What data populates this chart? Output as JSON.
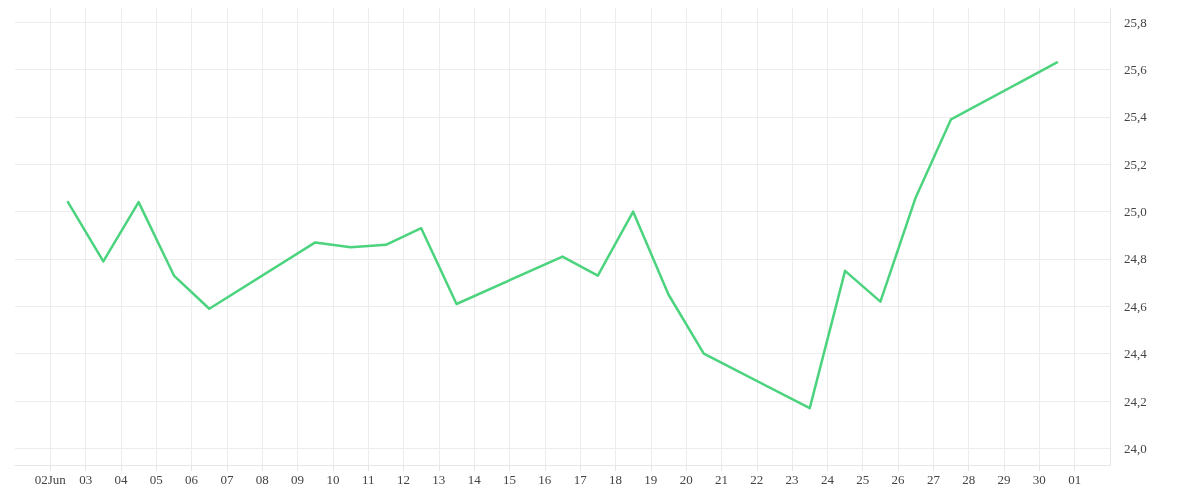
{
  "chart_data": {
    "type": "line",
    "x": [
      "--06-02T12:00",
      "--06-03T12:00",
      "--06-04T12:00",
      "--06-05T12:00",
      "--06-06T12:00",
      "--06-09T12:00",
      "--06-10T12:00",
      "--06-11T12:00",
      "--06-12T12:00",
      "--06-13T12:00",
      "--06-16T12:00",
      "--06-17T12:00",
      "--06-18T12:00",
      "--06-19T12:00",
      "--06-20T12:00",
      "--06-23T12:00",
      "--06-24T12:00",
      "--06-25T12:00",
      "--06-26T12:00",
      "--06-27T12:00",
      "--06-30T12:00"
    ],
    "series": [
      {
        "color": "#4cd37e",
        "values": [
          25.04,
          24.79,
          25.04,
          24.73,
          24.59,
          24.87,
          24.85,
          24.86,
          24.93,
          24.61,
          24.81,
          24.73,
          25.0,
          24.65,
          24.4,
          24.17,
          24.75,
          24.62,
          25.06,
          25.39,
          25.63
        ]
      }
    ],
    "xlim": [
      "--06-01",
      "--07-02"
    ],
    "xticks": [
      {
        "value": "--06-02",
        "label": "02Jun"
      },
      {
        "value": "--06-03",
        "label": "03"
      },
      {
        "value": "--06-04",
        "label": "04"
      },
      {
        "value": "--06-05",
        "label": "05"
      },
      {
        "value": "--06-06",
        "label": "06"
      },
      {
        "value": "--06-07",
        "label": "07"
      },
      {
        "value": "--06-08",
        "label": "08"
      },
      {
        "value": "--06-09",
        "label": "09"
      },
      {
        "value": "--06-10",
        "label": "10"
      },
      {
        "value": "--06-11",
        "label": "11"
      },
      {
        "value": "--06-12",
        "label": "12"
      },
      {
        "value": "--06-13",
        "label": "13"
      },
      {
        "value": "--06-14",
        "label": "14"
      },
      {
        "value": "--06-15",
        "label": "15"
      },
      {
        "value": "--06-16",
        "label": "16"
      },
      {
        "value": "--06-17",
        "label": "17"
      },
      {
        "value": "--06-18",
        "label": "18"
      },
      {
        "value": "--06-19",
        "label": "19"
      },
      {
        "value": "--06-20",
        "label": "20"
      },
      {
        "value": "--06-21",
        "label": "21"
      },
      {
        "value": "--06-22",
        "label": "22"
      },
      {
        "value": "--06-23",
        "label": "23"
      },
      {
        "value": "--06-24",
        "label": "24"
      },
      {
        "value": "--06-25",
        "label": "25"
      },
      {
        "value": "--06-26",
        "label": "26"
      },
      {
        "value": "--06-27",
        "label": "27"
      },
      {
        "value": "--06-28",
        "label": "28"
      },
      {
        "value": "--06-29",
        "label": "29"
      },
      {
        "value": "--06-30",
        "label": "30"
      },
      {
        "value": "--07-01",
        "label": "01"
      }
    ],
    "ylim": [
      23.93,
      25.86
    ],
    "yticks": [
      {
        "value": 24.0,
        "label": "24,0"
      },
      {
        "value": 24.2,
        "label": "24,2"
      },
      {
        "value": 24.4,
        "label": "24,4"
      },
      {
        "value": 24.6,
        "label": "24,6"
      },
      {
        "value": 24.8,
        "label": "24,8"
      },
      {
        "value": 25.0,
        "label": "25,0"
      },
      {
        "value": 25.2,
        "label": "25,2"
      },
      {
        "value": 25.4,
        "label": "25,4"
      },
      {
        "value": 25.6,
        "label": "25,6"
      },
      {
        "value": 25.8,
        "label": "25,8"
      }
    ],
    "grid": true,
    "marker": "none",
    "line_style": "solid"
  }
}
